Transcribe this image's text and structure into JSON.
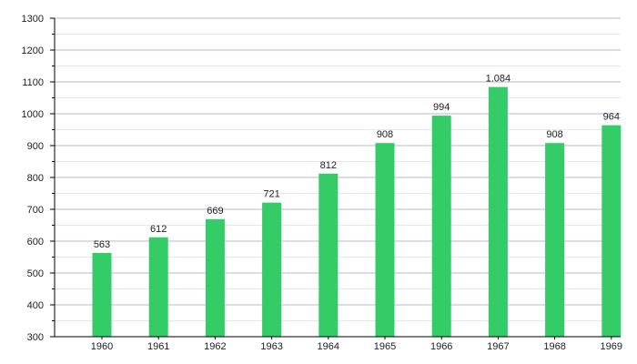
{
  "chart_data": {
    "type": "bar",
    "title": "",
    "xlabel": "",
    "ylabel": "",
    "categories": [
      "1960",
      "1961",
      "1962",
      "1963",
      "1964",
      "1965",
      "1966",
      "1967",
      "1968",
      "1969"
    ],
    "values": [
      563,
      612,
      669,
      721,
      812,
      908,
      994,
      1084,
      908,
      964
    ],
    "value_labels": [
      "563",
      "612",
      "669",
      "721",
      "812",
      "908",
      "994",
      "1.084",
      "908",
      "964"
    ],
    "ylim": [
      300,
      1300
    ],
    "y_ticks": [
      300,
      400,
      500,
      600,
      700,
      800,
      900,
      1000,
      1100,
      1200,
      1300
    ],
    "y_tick_labels": [
      "300",
      "400",
      "500",
      "600",
      "700",
      "800",
      "900",
      "1000",
      "1100",
      "1200",
      "1300"
    ],
    "grid": true,
    "legend": "none",
    "colors": {
      "bar": "#33cc66",
      "grid_major": "#b8b8d0",
      "grid_minor": "#e6e6ee",
      "axis": "#000000"
    }
  }
}
